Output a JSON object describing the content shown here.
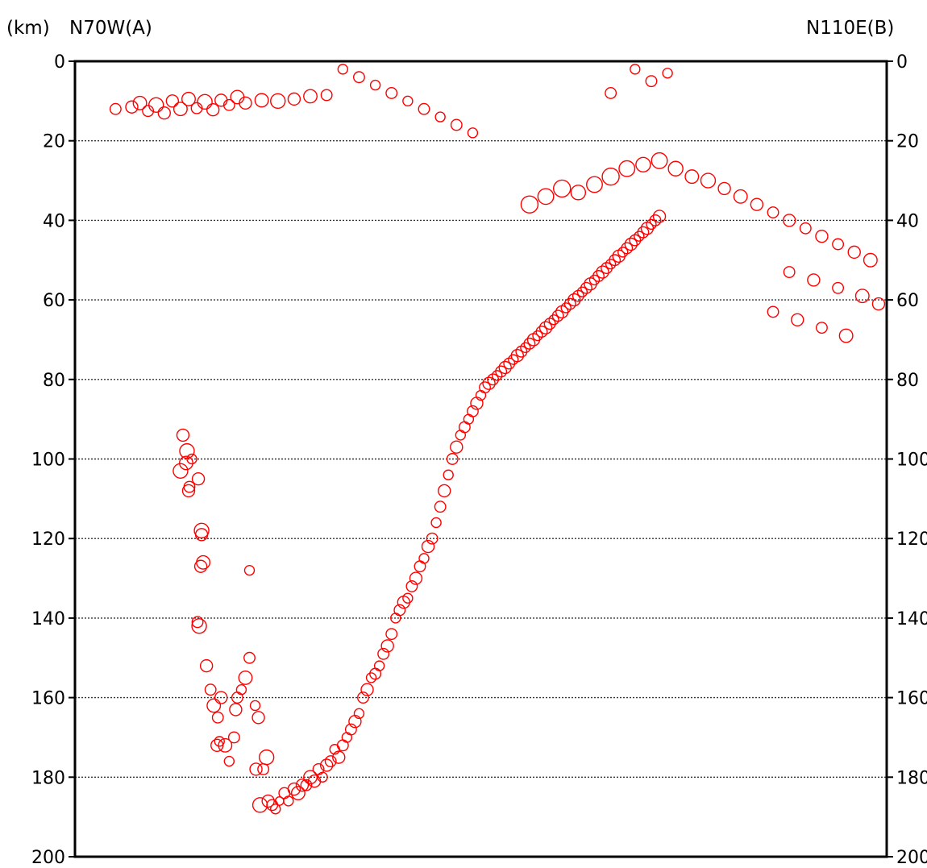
{
  "chart_data": {
    "type": "scatter",
    "unit_label": "(km)",
    "left_label": "N70W(A)",
    "right_label": "N110E(B)",
    "y_axis": {
      "ticks": [
        0,
        20,
        40,
        60,
        80,
        100,
        120,
        140,
        160,
        180,
        200
      ],
      "range": [
        0,
        200
      ],
      "inverted": true
    },
    "x_range": [
      0,
      1
    ],
    "grid": {
      "horizontal": true,
      "style": "dotted"
    },
    "marker_color": "#ff0000",
    "markers": "open circles scaled by size",
    "points": [
      [
        0.13,
        103.0,
        12
      ],
      [
        0.133,
        94.0,
        10
      ],
      [
        0.137,
        101.0,
        11
      ],
      [
        0.138,
        98.0,
        12
      ],
      [
        0.14,
        108.0,
        10
      ],
      [
        0.141,
        107.0,
        9
      ],
      [
        0.144,
        100.0,
        8
      ],
      [
        0.152,
        105.0,
        10
      ],
      [
        0.156,
        118.0,
        12
      ],
      [
        0.156,
        119.0,
        10
      ],
      [
        0.155,
        127.0,
        10
      ],
      [
        0.158,
        126.0,
        11
      ],
      [
        0.153,
        142.0,
        12
      ],
      [
        0.151,
        141.0,
        9
      ],
      [
        0.162,
        152.0,
        10
      ],
      [
        0.167,
        158.0,
        9
      ],
      [
        0.171,
        162.0,
        11
      ],
      [
        0.175,
        172.0,
        10
      ],
      [
        0.178,
        171.0,
        8
      ],
      [
        0.176,
        165.0,
        9
      ],
      [
        0.18,
        160.0,
        10
      ],
      [
        0.185,
        172.0,
        11
      ],
      [
        0.19,
        176.0,
        8
      ],
      [
        0.196,
        170.0,
        9
      ],
      [
        0.198,
        163.0,
        10
      ],
      [
        0.2,
        160.0,
        9
      ],
      [
        0.205,
        158.0,
        8
      ],
      [
        0.21,
        155.0,
        11
      ],
      [
        0.215,
        150.0,
        9
      ],
      [
        0.222,
        162.0,
        8
      ],
      [
        0.226,
        165.0,
        10
      ],
      [
        0.232,
        178.0,
        9
      ],
      [
        0.236,
        175.0,
        12
      ],
      [
        0.215,
        128.0,
        8
      ],
      [
        0.223,
        178.0,
        10
      ],
      [
        0.228,
        187.0,
        12
      ],
      [
        0.238,
        186.0,
        10
      ],
      [
        0.243,
        187.0,
        9
      ],
      [
        0.247,
        188.0,
        8
      ],
      [
        0.252,
        186.0,
        7
      ],
      [
        0.258,
        184.0,
        9
      ],
      [
        0.263,
        186.0,
        8
      ],
      [
        0.27,
        183.0,
        10
      ],
      [
        0.275,
        184.0,
        11
      ],
      [
        0.28,
        182.0,
        10
      ],
      [
        0.285,
        182.0,
        9
      ],
      [
        0.29,
        180.0,
        11
      ],
      [
        0.295,
        181.0,
        10
      ],
      [
        0.3,
        178.0,
        9
      ],
      [
        0.305,
        180.0,
        8
      ],
      [
        0.31,
        177.0,
        10
      ],
      [
        0.315,
        176.0,
        9
      ],
      [
        0.32,
        173.0,
        8
      ],
      [
        0.325,
        175.0,
        10
      ],
      [
        0.33,
        172.0,
        9
      ],
      [
        0.335,
        170.0,
        8
      ],
      [
        0.34,
        168.0,
        9
      ],
      [
        0.345,
        166.0,
        10
      ],
      [
        0.35,
        164.0,
        8
      ],
      [
        0.355,
        160.0,
        9
      ],
      [
        0.36,
        158.0,
        10
      ],
      [
        0.365,
        155.0,
        8
      ],
      [
        0.37,
        154.0,
        9
      ],
      [
        0.375,
        152.0,
        8
      ],
      [
        0.38,
        149.0,
        9
      ],
      [
        0.385,
        147.0,
        10
      ],
      [
        0.39,
        144.0,
        9
      ],
      [
        0.395,
        140.0,
        8
      ],
      [
        0.4,
        138.0,
        9
      ],
      [
        0.405,
        136.0,
        10
      ],
      [
        0.41,
        135.0,
        8
      ],
      [
        0.415,
        132.0,
        9
      ],
      [
        0.42,
        130.0,
        10
      ],
      [
        0.425,
        127.0,
        9
      ],
      [
        0.43,
        125.0,
        8
      ],
      [
        0.435,
        122.0,
        10
      ],
      [
        0.44,
        120.0,
        9
      ],
      [
        0.445,
        116.0,
        8
      ],
      [
        0.45,
        112.0,
        9
      ],
      [
        0.455,
        108.0,
        10
      ],
      [
        0.46,
        104.0,
        8
      ],
      [
        0.465,
        100.0,
        9
      ],
      [
        0.47,
        97.0,
        10
      ],
      [
        0.475,
        94.0,
        8
      ],
      [
        0.48,
        92.0,
        9
      ],
      [
        0.485,
        90.0,
        8
      ],
      [
        0.49,
        88.0,
        9
      ],
      [
        0.495,
        86.0,
        10
      ],
      [
        0.5,
        84.0,
        8
      ],
      [
        0.505,
        82.0,
        9
      ],
      [
        0.51,
        81.0,
        10
      ],
      [
        0.515,
        80.0,
        9
      ],
      [
        0.52,
        79.0,
        8
      ],
      [
        0.525,
        78.0,
        9
      ],
      [
        0.53,
        77.0,
        10
      ],
      [
        0.535,
        76.0,
        9
      ],
      [
        0.54,
        75.0,
        8
      ],
      [
        0.545,
        74.0,
        10
      ],
      [
        0.55,
        73.0,
        9
      ],
      [
        0.555,
        72.0,
        8
      ],
      [
        0.56,
        71.0,
        9
      ],
      [
        0.565,
        70.0,
        10
      ],
      [
        0.57,
        69.0,
        8
      ],
      [
        0.575,
        68.0,
        9
      ],
      [
        0.58,
        67.0,
        10
      ],
      [
        0.585,
        66.0,
        9
      ],
      [
        0.59,
        65.0,
        8
      ],
      [
        0.595,
        64.0,
        9
      ],
      [
        0.6,
        63.0,
        10
      ],
      [
        0.605,
        62.0,
        8
      ],
      [
        0.61,
        61.0,
        9
      ],
      [
        0.615,
        60.0,
        10
      ],
      [
        0.62,
        59.0,
        9
      ],
      [
        0.625,
        58.0,
        8
      ],
      [
        0.63,
        57.0,
        9
      ],
      [
        0.635,
        56.0,
        10
      ],
      [
        0.64,
        55.0,
        8
      ],
      [
        0.645,
        54.0,
        9
      ],
      [
        0.65,
        53.0,
        10
      ],
      [
        0.655,
        52.0,
        9
      ],
      [
        0.66,
        51.0,
        8
      ],
      [
        0.665,
        50.0,
        9
      ],
      [
        0.67,
        49.0,
        10
      ],
      [
        0.675,
        48.0,
        8
      ],
      [
        0.68,
        47.0,
        9
      ],
      [
        0.685,
        46.0,
        10
      ],
      [
        0.69,
        45.0,
        9
      ],
      [
        0.695,
        44.0,
        8
      ],
      [
        0.7,
        43.0,
        9
      ],
      [
        0.705,
        42.0,
        10
      ],
      [
        0.71,
        41.0,
        8
      ],
      [
        0.715,
        40.0,
        9
      ],
      [
        0.72,
        39.0,
        10
      ]
    ],
    "cluster_points": [
      [
        0.08,
        10.5,
        11
      ],
      [
        0.1,
        11.0,
        12
      ],
      [
        0.12,
        10.0,
        10
      ],
      [
        0.14,
        9.5,
        11
      ],
      [
        0.16,
        10.2,
        12
      ],
      [
        0.18,
        9.8,
        10
      ],
      [
        0.2,
        9.0,
        11
      ],
      [
        0.05,
        12.0,
        9
      ],
      [
        0.07,
        11.5,
        10
      ],
      [
        0.09,
        12.5,
        9
      ],
      [
        0.11,
        13.0,
        10
      ],
      [
        0.13,
        12.0,
        11
      ],
      [
        0.15,
        11.8,
        9
      ],
      [
        0.17,
        12.2,
        10
      ],
      [
        0.19,
        11.0,
        9
      ],
      [
        0.21,
        10.5,
        10
      ],
      [
        0.23,
        9.8,
        11
      ],
      [
        0.25,
        10.0,
        12
      ],
      [
        0.27,
        9.5,
        10
      ],
      [
        0.29,
        8.8,
        11
      ],
      [
        0.31,
        8.5,
        9
      ],
      [
        0.56,
        36.0,
        14
      ],
      [
        0.58,
        34.0,
        13
      ],
      [
        0.6,
        32.0,
        14
      ],
      [
        0.62,
        33.0,
        12
      ],
      [
        0.64,
        31.0,
        13
      ],
      [
        0.66,
        29.0,
        14
      ],
      [
        0.68,
        27.0,
        13
      ],
      [
        0.7,
        26.0,
        12
      ],
      [
        0.72,
        25.0,
        13
      ],
      [
        0.74,
        27.0,
        12
      ],
      [
        0.76,
        29.0,
        11
      ],
      [
        0.78,
        30.0,
        12
      ],
      [
        0.8,
        32.0,
        10
      ],
      [
        0.82,
        34.0,
        11
      ],
      [
        0.84,
        36.0,
        10
      ],
      [
        0.86,
        38.0,
        9
      ],
      [
        0.88,
        40.0,
        10
      ],
      [
        0.9,
        42.0,
        9
      ],
      [
        0.92,
        44.0,
        10
      ],
      [
        0.94,
        46.0,
        9
      ],
      [
        0.96,
        48.0,
        10
      ],
      [
        0.98,
        50.0,
        11
      ],
      [
        0.88,
        53.0,
        9
      ],
      [
        0.91,
        55.0,
        10
      ],
      [
        0.94,
        57.0,
        9
      ],
      [
        0.97,
        59.0,
        11
      ],
      [
        0.99,
        61.0,
        10
      ],
      [
        0.86,
        63.0,
        9
      ],
      [
        0.89,
        65.0,
        10
      ],
      [
        0.92,
        67.0,
        9
      ],
      [
        0.95,
        69.0,
        11
      ],
      [
        0.69,
        2.0,
        8
      ],
      [
        0.71,
        5.0,
        9
      ],
      [
        0.73,
        3.0,
        8
      ],
      [
        0.66,
        8.0,
        9
      ],
      [
        0.33,
        2.0,
        8
      ],
      [
        0.35,
        4.0,
        9
      ],
      [
        0.37,
        6.0,
        8
      ],
      [
        0.39,
        8.0,
        9
      ],
      [
        0.41,
        10.0,
        8
      ],
      [
        0.43,
        12.0,
        9
      ],
      [
        0.45,
        14.0,
        8
      ],
      [
        0.47,
        16.0,
        9
      ],
      [
        0.49,
        18.0,
        8
      ]
    ]
  }
}
